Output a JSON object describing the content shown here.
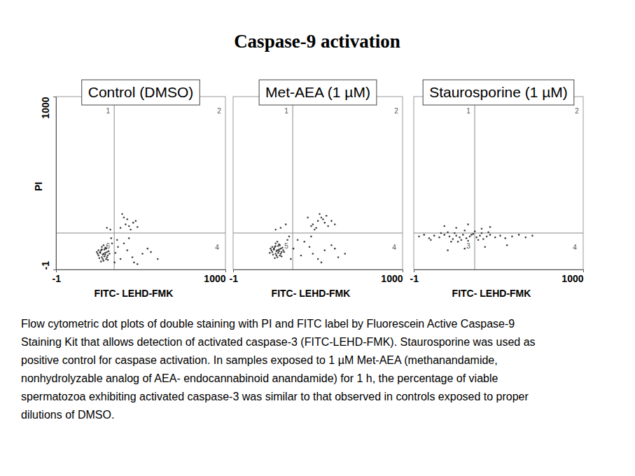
{
  "chart_data": {
    "type": "scatter",
    "title": "Caspase-9 activation",
    "x_label": "FITC- LEHD-FMK",
    "y_label": "PI",
    "xlim": [
      -1,
      1000
    ],
    "ylim": [
      -1,
      1000
    ],
    "xticks": [
      -1,
      1000
    ],
    "yticks": [
      -1,
      1000
    ],
    "color": "#000000",
    "marker": "dot",
    "panels": [
      {
        "title": "Control (DMSO)",
        "quadrant_labels": [
          "1",
          "2",
          "6",
          "4"
        ],
        "gate_x": 343,
        "gate_y": 210,
        "x": [
          250,
          260,
          270,
          280,
          290,
          300,
          265,
          275,
          285,
          295,
          255,
          245,
          305,
          310,
          270,
          280,
          290,
          260,
          275,
          285,
          300,
          240,
          315,
          265,
          295,
          280,
          270,
          290,
          250,
          305,
          380,
          420,
          460,
          510,
          400,
          450,
          540,
          600,
          360,
          480,
          430,
          560,
          330,
          345,
          350,
          325,
          365,
          380,
          410,
          440,
          470,
          400,
          430,
          455,
          390,
          480,
          420,
          300,
          320
        ],
        "values": [
          80,
          95,
          70,
          90,
          85,
          100,
          110,
          60,
          75,
          120,
          65,
          90,
          80,
          105,
          130,
          50,
          95,
          100,
          85,
          115,
          70,
          100,
          90,
          45,
          60,
          140,
          115,
          125,
          110,
          55,
          60,
          110,
          40,
          90,
          150,
          70,
          120,
          60,
          170,
          30,
          180,
          100,
          150,
          40,
          95,
          180,
          130,
          240,
          260,
          230,
          280,
          300,
          250,
          270,
          320,
          245,
          290,
          240,
          230
        ]
      },
      {
        "title": "Met-AEA (1 µM)",
        "quadrant_labels": [
          "1",
          "2",
          "5",
          "4"
        ],
        "gate_x": 351,
        "gate_y": 210,
        "x": [
          230,
          240,
          250,
          260,
          270,
          280,
          245,
          255,
          265,
          275,
          235,
          225,
          285,
          290,
          250,
          260,
          270,
          240,
          255,
          265,
          280,
          220,
          295,
          245,
          275,
          260,
          250,
          270,
          230,
          285,
          300,
          215,
          400,
          450,
          500,
          540,
          420,
          470,
          580,
          620,
          380,
          520,
          460,
          600,
          660,
          320,
          340,
          355,
          330,
          470,
          500,
          520,
          540,
          560,
          510,
          490,
          530,
          550,
          480,
          580,
          600,
          440,
          460,
          280,
          310,
          250
        ],
        "values": [
          100,
          115,
          90,
          110,
          105,
          120,
          130,
          80,
          95,
          140,
          85,
          110,
          100,
          125,
          150,
          70,
          115,
          120,
          105,
          135,
          90,
          120,
          110,
          65,
          80,
          160,
          135,
          145,
          130,
          75,
          100,
          95,
          80,
          130,
          60,
          110,
          160,
          90,
          140,
          70,
          170,
          40,
          190,
          120,
          90,
          170,
          60,
          120,
          190,
          260,
          280,
          300,
          270,
          250,
          320,
          240,
          290,
          310,
          230,
          280,
          260,
          300,
          250,
          240,
          260,
          230
        ]
      },
      {
        "title": "Staurosporine (1 µM)",
        "quadrant_labels": [
          "1",
          "2",
          "3",
          "4"
        ],
        "gate_x": 359,
        "gate_y": 210,
        "x": [
          30,
          60,
          90,
          120,
          150,
          180,
          210,
          230,
          250,
          270,
          290,
          310,
          330,
          350,
          370,
          390,
          410,
          430,
          450,
          480,
          510,
          540,
          580,
          620,
          660,
          700,
          200,
          240,
          280,
          320,
          360,
          400,
          260,
          300,
          340,
          220,
          380,
          160,
          440,
          100,
          250,
          320,
          400,
          180,
          450,
          300,
          420,
          200,
          550
        ],
        "values": [
          190,
          200,
          180,
          195,
          185,
          200,
          190,
          175,
          195,
          185,
          200,
          180,
          190,
          205,
          185,
          195,
          175,
          190,
          200,
          185,
          195,
          180,
          190,
          200,
          185,
          195,
          215,
          210,
          170,
          165,
          220,
          210,
          160,
          225,
          200,
          160,
          170,
          210,
          215,
          170,
          240,
          260,
          235,
          250,
          245,
          120,
          130,
          110,
          140
        ]
      }
    ],
    "caption": [
      "Flow cytometric dot plots of double staining with PI and FITC label by Fluorescein Active Caspase-9",
      "Staining Kit that allows detection of activated caspase-3 (FITC-LEHD-FMK). Staurosporine was used as",
      "positive control for caspase activation. In samples exposed to 1 µM Met-AEA (methanandamide,",
      "nonhydrolyzable analog of AEA- endocannabinoid anandamide) for 1 h, the percentage of viable",
      "spermatozoa exhibiting activated caspase-3 was similar to that observed in controls exposed to proper",
      "dilutions of DMSO."
    ]
  }
}
